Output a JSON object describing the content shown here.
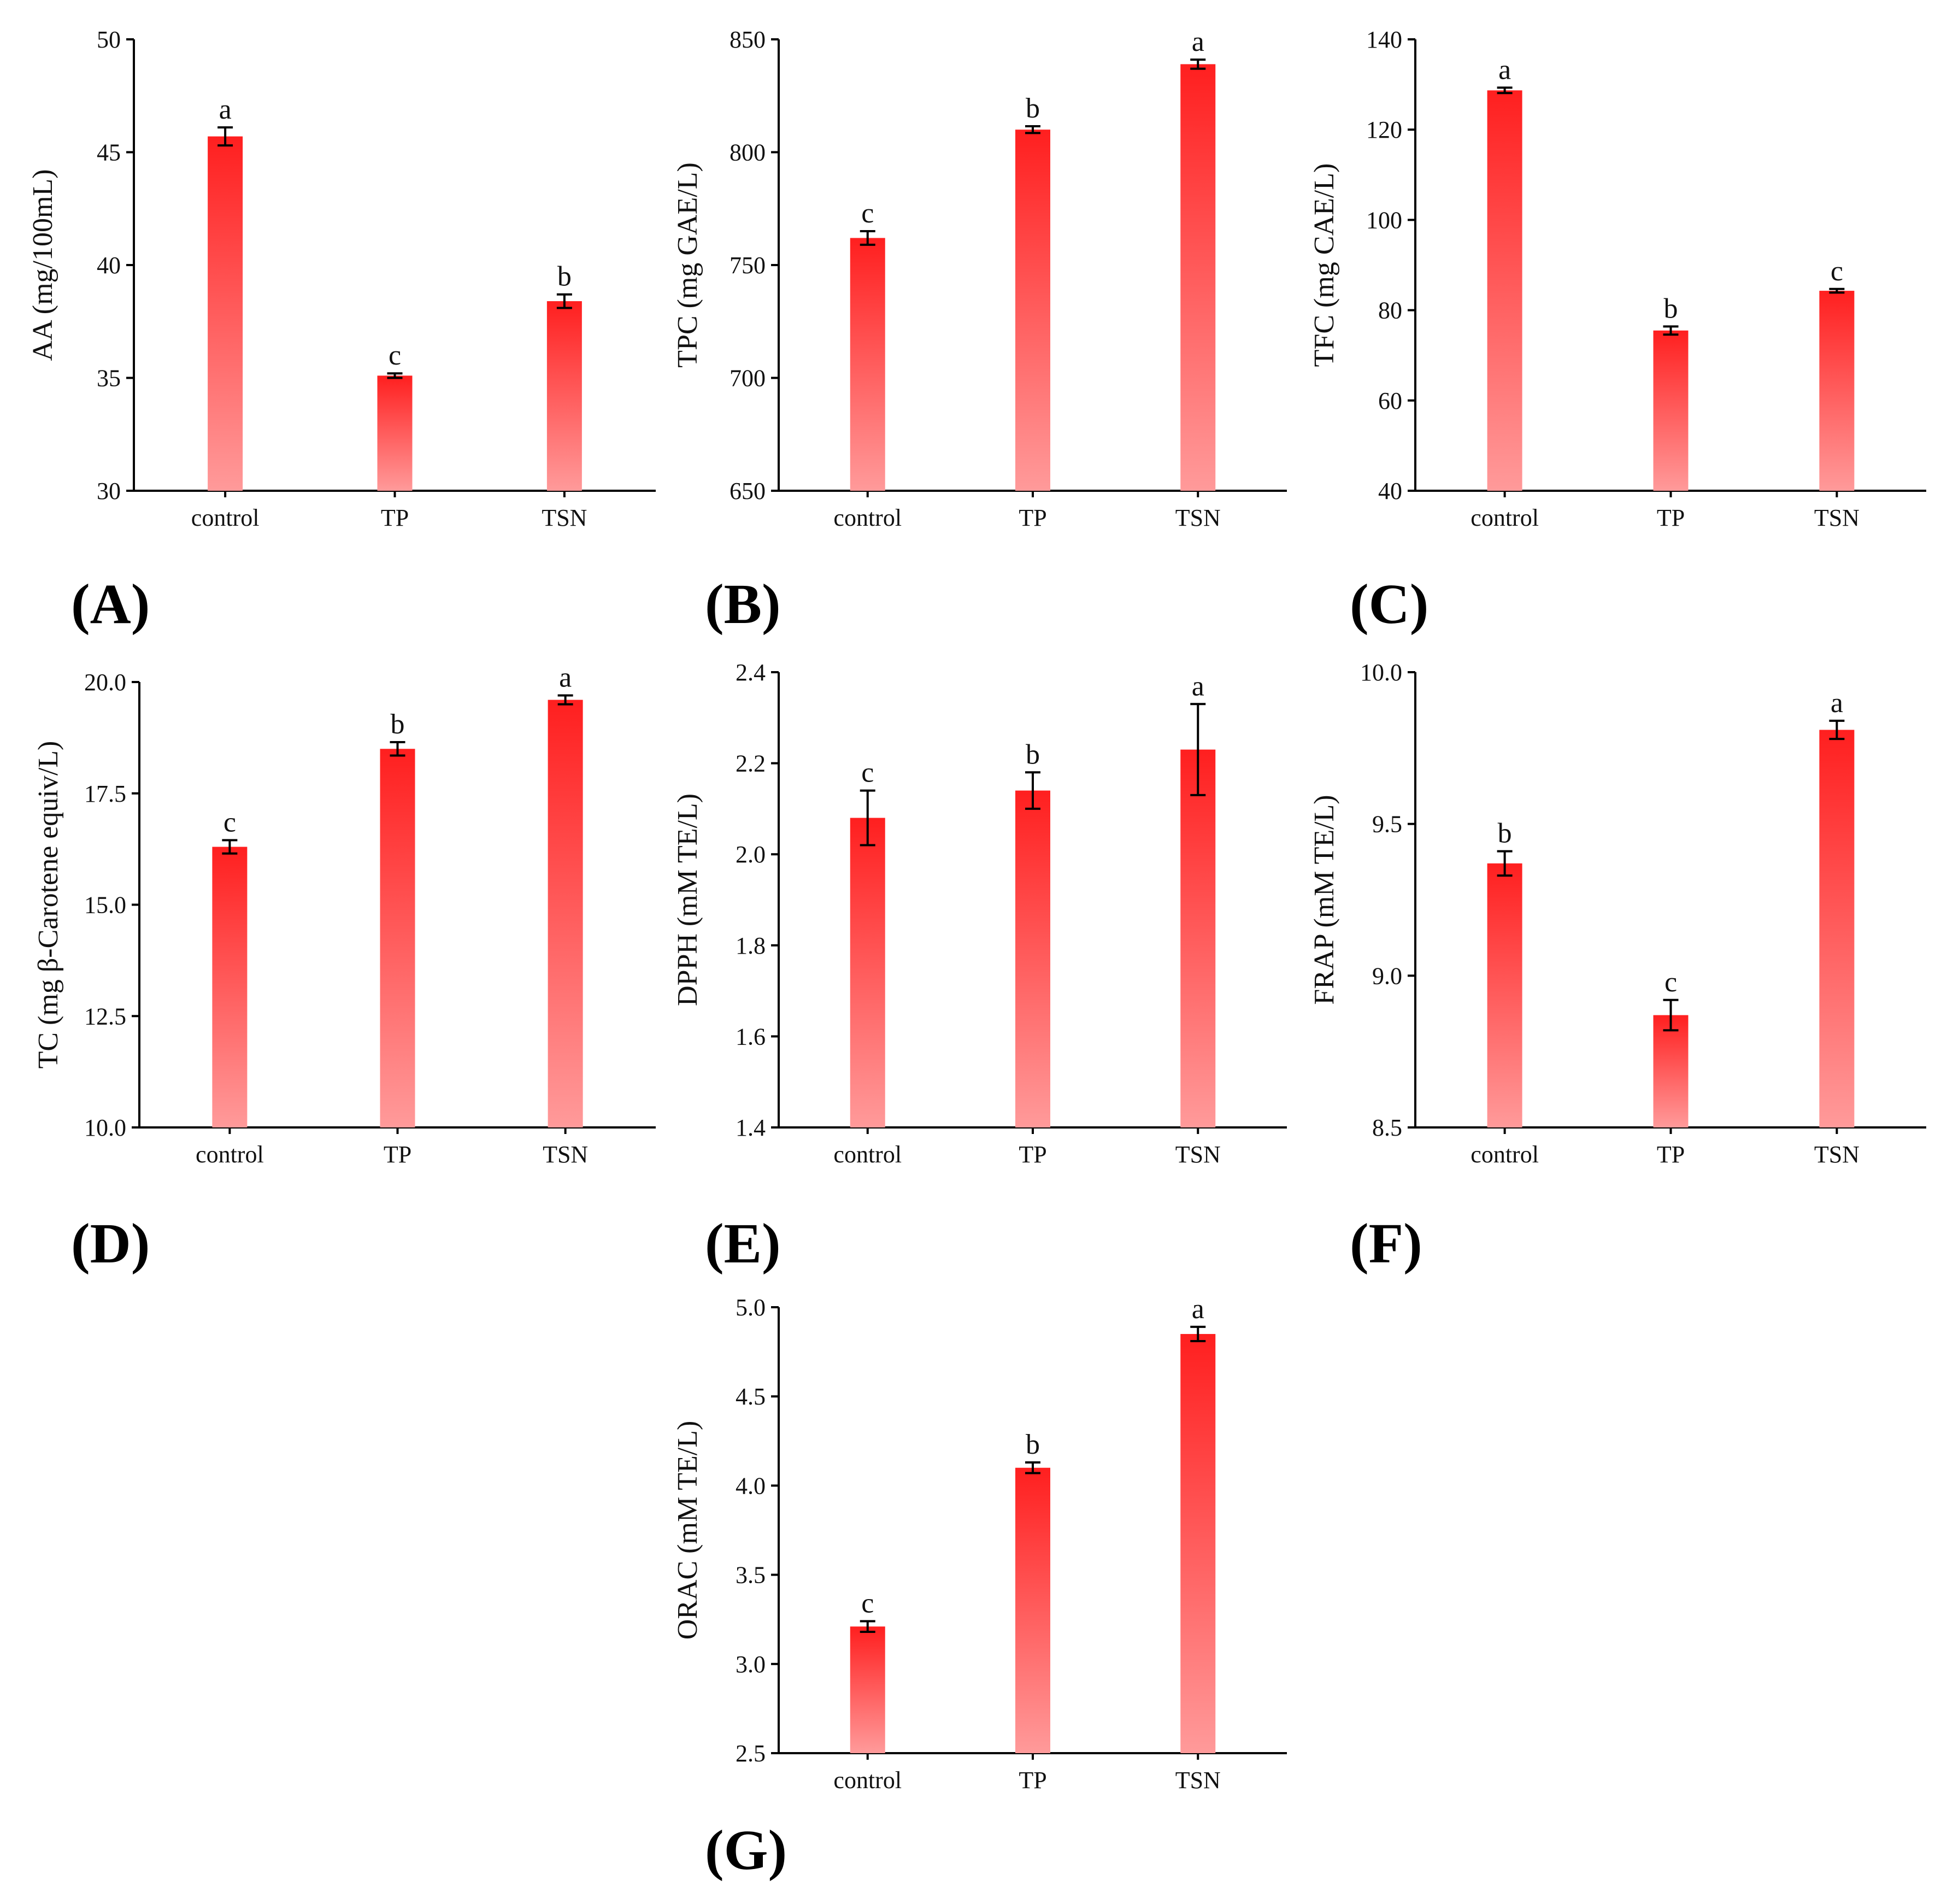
{
  "figure": {
    "colors": {
      "bar_top": "#ff1f1f",
      "bar_bottom": "#ff9a9a",
      "axis": "#000000"
    },
    "chart_data": [
      {
        "id": "A",
        "panel_label": "(A)",
        "type": "bar",
        "ylabel": "AA (mg/100mL)",
        "ylim": [
          30,
          50
        ],
        "yticks": [
          "30",
          "35",
          "40",
          "45",
          "50"
        ],
        "categories": [
          "control",
          "TP",
          "TSN"
        ],
        "values": [
          45.7,
          35.1,
          38.4
        ],
        "errors": [
          0.4,
          0.1,
          0.3
        ],
        "letters": [
          "a",
          "c",
          "b"
        ]
      },
      {
        "id": "B",
        "panel_label": "(B)",
        "type": "bar",
        "ylabel": "TPC (mg GAE/L)",
        "ylim": [
          650,
          850
        ],
        "yticks": [
          "650",
          "700",
          "750",
          "800",
          "850"
        ],
        "categories": [
          "control",
          "TP",
          "TSN"
        ],
        "values": [
          762,
          810,
          839
        ],
        "errors": [
          3,
          1.5,
          2
        ],
        "letters": [
          "c",
          "b",
          "a"
        ]
      },
      {
        "id": "C",
        "panel_label": "(C)",
        "type": "bar",
        "ylabel": "TFC (mg CAE/L)",
        "ylim": [
          40,
          140
        ],
        "yticks": [
          "40",
          "60",
          "80",
          "100",
          "120",
          "140"
        ],
        "categories": [
          "control",
          "TP",
          "TSN"
        ],
        "values": [
          128.7,
          75.5,
          84.3
        ],
        "errors": [
          0.6,
          0.9,
          0.4
        ],
        "letters": [
          "a",
          "b",
          "c"
        ]
      },
      {
        "id": "D",
        "panel_label": "(D)",
        "type": "bar",
        "ylabel": "TC (mg β-Carotene equiv/L)",
        "ylim": [
          10,
          20
        ],
        "yticks": [
          "10.0",
          "12.5",
          "15.0",
          "17.5",
          "20.0"
        ],
        "categories": [
          "control",
          "TP",
          "TSN"
        ],
        "values": [
          16.3,
          18.5,
          19.6
        ],
        "errors": [
          0.15,
          0.15,
          0.1
        ],
        "letters": [
          "c",
          "b",
          "a"
        ]
      },
      {
        "id": "E",
        "panel_label": "(E)",
        "type": "bar",
        "ylabel": "DPPH (mM TE/L)",
        "ylim": [
          1.4,
          2.4
        ],
        "yticks": [
          "1.4",
          "1.6",
          "1.8",
          "2.0",
          "2.2",
          "2.4"
        ],
        "categories": [
          "control",
          "TP",
          "TSN"
        ],
        "values": [
          2.08,
          2.14,
          2.23
        ],
        "errors": [
          0.06,
          0.04,
          0.1
        ],
        "letters": [
          "c",
          "b",
          "a"
        ]
      },
      {
        "id": "F",
        "panel_label": "(F)",
        "type": "bar",
        "ylabel": "FRAP (mM TE/L)",
        "ylim": [
          8.5,
          10.0
        ],
        "yticks": [
          "8.5",
          "9.0",
          "9.5",
          "10.0"
        ],
        "categories": [
          "control",
          "TP",
          "TSN"
        ],
        "values": [
          9.37,
          8.87,
          9.81
        ],
        "errors": [
          0.04,
          0.05,
          0.03
        ],
        "letters": [
          "b",
          "c",
          "a"
        ]
      },
      {
        "id": "G",
        "panel_label": "(G)",
        "type": "bar",
        "ylabel": "ORAC (mM TE/L)",
        "ylim": [
          2.5,
          5.0
        ],
        "yticks": [
          "2.5",
          "3.0",
          "3.5",
          "4.0",
          "4.5",
          "5.0"
        ],
        "categories": [
          "control",
          "TP",
          "TSN"
        ],
        "values": [
          3.21,
          4.1,
          4.85
        ],
        "errors": [
          0.03,
          0.03,
          0.04
        ],
        "letters": [
          "c",
          "b",
          "a"
        ]
      }
    ]
  }
}
